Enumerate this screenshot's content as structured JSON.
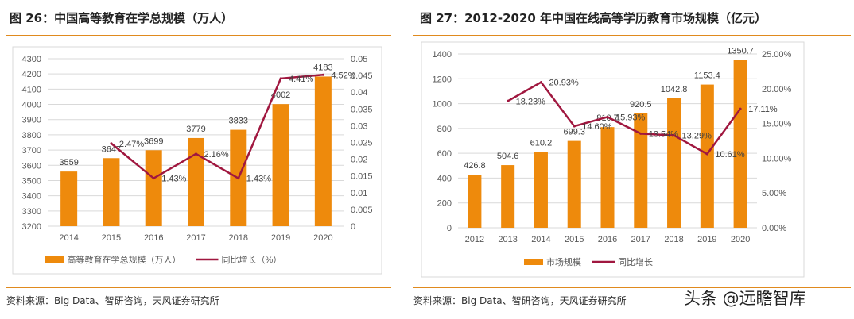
{
  "left": {
    "title": "图 26：中国高等教育在学总规模（万人）",
    "source": "资料来源：Big Data、智研咨询，天风证券研究所"
  },
  "right": {
    "title": "图 27：2012-2020 年中国在线高等学历教育市场规模（亿元）",
    "source": "资料来源：Big Data、智研咨询，天风证券研究所"
  },
  "watermark": "头条 @远瞻智库",
  "colors": {
    "bar": "#ee8a0c",
    "line": "#a0173f",
    "rule": "#e08a1e"
  },
  "chart_data": [
    {
      "type": "bar+line",
      "categories": [
        "2014",
        "2015",
        "2016",
        "2017",
        "2018",
        "2019",
        "2020"
      ],
      "series": [
        {
          "name": "高等教育在学总规模（万人）",
          "type": "bar",
          "axis": "left",
          "values": [
            3559,
            3647,
            3699,
            3779,
            3833,
            4002,
            4183
          ],
          "labels": [
            "3559",
            "3647",
            "3699",
            "3779",
            "3833",
            "4002",
            "4183"
          ]
        },
        {
          "name": "同比增长（%）",
          "type": "line",
          "axis": "right",
          "values": [
            null,
            0.0247,
            0.0143,
            0.0216,
            0.0143,
            0.0441,
            0.0452
          ],
          "labels": [
            "",
            "2.47%",
            "1.43%",
            "2.16%",
            "1.43%",
            "4.41%",
            "4.52%"
          ]
        }
      ],
      "ylim_left": [
        3200,
        4300
      ],
      "yticks_left": [
        "3200",
        "3300",
        "3400",
        "3500",
        "3600",
        "3700",
        "3800",
        "3900",
        "4000",
        "4100",
        "4200",
        "4300"
      ],
      "ylim_right": [
        0,
        0.05
      ],
      "yticks_right": [
        "0",
        "0.005",
        "0.01",
        "0.015",
        "0.02",
        "0.025",
        "0.03",
        "0.035",
        "0.04",
        "0.045",
        "0.05"
      ],
      "grid": true,
      "legend": "bottom"
    },
    {
      "type": "bar+line",
      "categories": [
        "2012",
        "2013",
        "2014",
        "2015",
        "2016",
        "2017",
        "2018",
        "2019",
        "2020"
      ],
      "series": [
        {
          "name": "市场规模",
          "type": "bar",
          "axis": "left",
          "values": [
            426.8,
            504.6,
            610.2,
            699.3,
            810.7,
            920.5,
            1042.8,
            1153.4,
            1350.7
          ],
          "labels": [
            "426.8",
            "504.6",
            "610.2",
            "699.3",
            "810.7",
            "920.5",
            "1042.8",
            "1153.4",
            "1350.7"
          ]
        },
        {
          "name": "同比增长",
          "type": "line",
          "axis": "right",
          "values": [
            null,
            0.1823,
            0.2093,
            0.146,
            0.1593,
            0.1354,
            0.1329,
            0.1061,
            0.1711
          ],
          "labels": [
            "",
            "18.23%",
            "20.93%",
            "14.60%",
            "15.93%",
            "13.54%",
            "13.29%",
            "10.61%",
            "17.11%"
          ]
        }
      ],
      "ylim_left": [
        0,
        1400
      ],
      "yticks_left": [
        "0",
        "200",
        "400",
        "600",
        "800",
        "1000",
        "1200",
        "1400"
      ],
      "ylim_right": [
        0,
        0.25
      ],
      "yticks_right": [
        "0.00%",
        "5.00%",
        "10.00%",
        "15.00%",
        "20.00%",
        "25.00%"
      ],
      "grid": true,
      "legend": "bottom"
    }
  ]
}
